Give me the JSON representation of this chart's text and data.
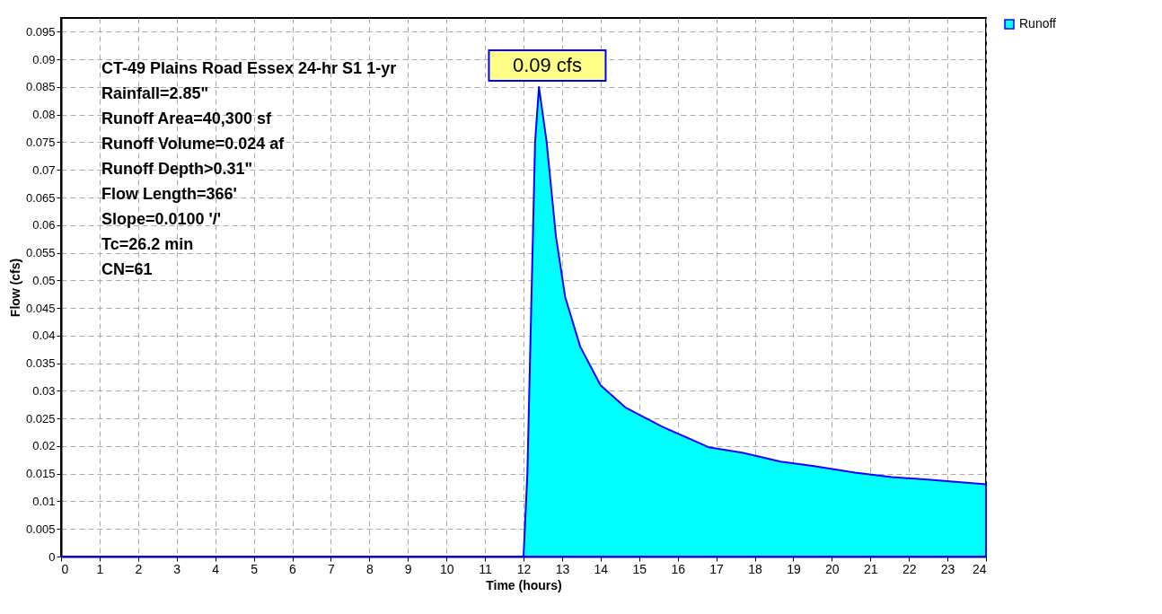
{
  "chart_data": {
    "type": "area",
    "xlabel": "Time  (hours)",
    "ylabel": "Flow  (cfs)",
    "xlim": [
      0,
      24
    ],
    "xticks": [
      0,
      1,
      2,
      3,
      4,
      5,
      6,
      7,
      8,
      9,
      10,
      11,
      12,
      13,
      14,
      15,
      16,
      17,
      18,
      19,
      20,
      21,
      22,
      23,
      24
    ],
    "ylim": [
      0,
      0.0975
    ],
    "yticks": [
      0,
      0.005,
      0.01,
      0.015,
      0.02,
      0.025,
      0.03,
      0.035,
      0.04,
      0.045,
      0.05,
      0.055,
      0.06,
      0.065,
      0.07,
      0.075,
      0.08,
      0.085,
      0.09,
      0.095
    ],
    "grid": true,
    "legend": "top right",
    "series": [
      {
        "name": "Runoff",
        "color": "#00ffff",
        "x": [
          0,
          12,
          12.1,
          12.2,
          12.3,
          12.4,
          12.6,
          12.84,
          13.08,
          13.47,
          14,
          14.64,
          15.6,
          16.8,
          17.67,
          18.67,
          19.5,
          20.6,
          21.56,
          22.56,
          24
        ],
        "values": [
          0,
          0,
          0.015,
          0.045,
          0.075,
          0.085,
          0.075,
          0.058,
          0.047,
          0.038,
          0.031,
          0.027,
          0.0235,
          0.0198,
          0.0188,
          0.0172,
          0.0164,
          0.0152,
          0.0144,
          0.0139,
          0.0131
        ]
      }
    ],
    "annotations": [
      {
        "text": "0.09 cfs",
        "x": 12.5,
        "y": 0.085
      },
      "CT-49 Plains Road Essex 24-hr S1 1-yr",
      "Rainfall=2.85\"",
      "Runoff Area=40,300 sf",
      "Runoff Volume=0.024 af",
      "Runoff Depth>0.31\"",
      "Flow Length=366'",
      "Slope=0.0100 '/'",
      "Tc=26.2 min",
      "CN=61"
    ]
  }
}
